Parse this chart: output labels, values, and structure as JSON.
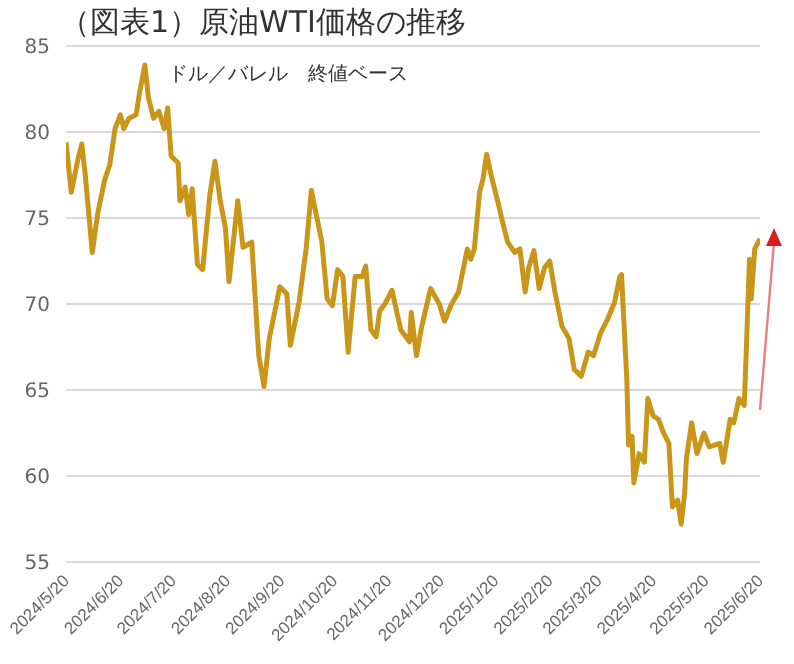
{
  "chart_data": {
    "type": "line",
    "title": "（図表1）原油WTI価格の推移",
    "subtitle": "ドル／バレル　終値ベース",
    "x": [
      "2024-05-20",
      "2024-05-23",
      "2024-05-27",
      "2024-05-29",
      "2024-05-31",
      "2024-06-04",
      "2024-06-07",
      "2024-06-11",
      "2024-06-14",
      "2024-06-17",
      "2024-06-20",
      "2024-06-22",
      "2024-06-25",
      "2024-06-29",
      "2024-07-01",
      "2024-07-04",
      "2024-07-06",
      "2024-07-09",
      "2024-07-12",
      "2024-07-15",
      "2024-07-17",
      "2024-07-19",
      "2024-07-23",
      "2024-07-24",
      "2024-07-27",
      "2024-07-29",
      "2024-07-31",
      "2024-08-03",
      "2024-08-06",
      "2024-08-10",
      "2024-08-13",
      "2024-08-16",
      "2024-08-19",
      "2024-08-21",
      "2024-08-26",
      "2024-08-29",
      "2024-09-03",
      "2024-09-06",
      "2024-09-07",
      "2024-09-10",
      "2024-09-13",
      "2024-09-19",
      "2024-09-23",
      "2024-09-25",
      "2024-09-30",
      "2024-10-04",
      "2024-10-07",
      "2024-10-10",
      "2024-10-13",
      "2024-10-16",
      "2024-10-19",
      "2024-10-22",
      "2024-10-25",
      "2024-10-28",
      "2024-11-01",
      "2024-11-05",
      "2024-11-07",
      "2024-11-10",
      "2024-11-13",
      "2024-11-15",
      "2024-11-18",
      "2024-11-22",
      "2024-11-27",
      "2024-12-02",
      "2024-12-03",
      "2024-12-06",
      "2024-12-09",
      "2024-12-14",
      "2024-12-19",
      "2024-12-22",
      "2024-12-26",
      "2024-12-30",
      "2025-01-04",
      "2025-01-06",
      "2025-01-08",
      "2025-01-11",
      "2025-01-13",
      "2025-01-15",
      "2025-01-18",
      "2025-01-22",
      "2025-01-24",
      "2025-01-27",
      "2025-01-31",
      "2025-02-03",
      "2025-02-06",
      "2025-02-08",
      "2025-02-11",
      "2025-02-14",
      "2025-02-17",
      "2025-02-20",
      "2025-02-23",
      "2025-02-27",
      "2025-03-03",
      "2025-03-06",
      "2025-03-10",
      "2025-03-14",
      "2025-03-17",
      "2025-03-21",
      "2025-03-25",
      "2025-03-29",
      "2025-04-01",
      "2025-04-02",
      "2025-04-05",
      "2025-04-06",
      "2025-04-08",
      "2025-04-09",
      "2025-04-12",
      "2025-04-15",
      "2025-04-17",
      "2025-04-20",
      "2025-04-23",
      "2025-04-26",
      "2025-04-29",
      "2025-05-01",
      "2025-05-04",
      "2025-05-06",
      "2025-05-08",
      "2025-05-09",
      "2025-05-12",
      "2025-05-15",
      "2025-05-19",
      "2025-05-22",
      "2025-05-25",
      "2025-05-28",
      "2025-05-30",
      "2025-06-03",
      "2025-06-05",
      "2025-06-08",
      "2025-06-11",
      "2025-06-12",
      "2025-06-14",
      "2025-06-15",
      "2025-06-17",
      "2025-06-20"
    ],
    "series": [
      {
        "color": "#c9961a",
        "values": [
          79.4,
          76.5,
          78.5,
          79.3,
          77.5,
          73,
          75.2,
          77.2,
          78.1,
          80.2,
          81,
          80.2,
          80.8,
          81,
          82.3,
          83.9,
          82,
          80.8,
          81.2,
          80.2,
          81.4,
          78.6,
          78.2,
          76,
          76.8,
          75.2,
          76.7,
          72.3,
          72,
          76.3,
          78.3,
          76,
          74.4,
          71.3,
          76,
          73.3,
          73.6,
          68.6,
          67,
          65.2,
          68,
          71,
          70.6,
          67.6,
          70.1,
          73.2,
          76.6,
          75.1,
          73.6,
          70.3,
          69.9,
          72,
          71.6,
          67.2,
          71.6,
          71.6,
          72.2,
          68.5,
          68.1,
          69.6,
          70,
          70.8,
          68.5,
          67.8,
          69.5,
          67,
          68.7,
          70.9,
          70,
          69,
          70,
          70.7,
          73.2,
          72.6,
          73.2,
          76.5,
          77.3,
          78.7,
          77.3,
          75.7,
          74.8,
          73.6,
          73,
          73.2,
          70.7,
          72.1,
          73.1,
          70.9,
          72.1,
          72.5,
          70.7,
          68.7,
          68,
          66.2,
          65.8,
          67.2,
          67,
          68.3,
          69.1,
          70.1,
          71.6,
          71.7,
          65.6,
          61.8,
          62.3,
          59.6,
          61.3,
          60.8,
          64.5,
          63.5,
          63.3,
          62.5,
          61.9,
          58.2,
          58.6,
          57.2,
          59,
          61,
          63.1,
          61.3,
          62.5,
          61.7,
          61.8,
          61.9,
          60.8,
          63.3,
          63.1,
          64.5,
          64.1,
          66.8,
          72.6,
          70.3,
          73.2,
          73.8
        ]
      }
    ],
    "xlim": [
      "2024-05-20",
      "2025-06-20"
    ],
    "xticks": [
      {
        "value": "2024-05-20",
        "label": "2024/5/20"
      },
      {
        "value": "2024-06-20",
        "label": "2024/6/20"
      },
      {
        "value": "2024-07-20",
        "label": "2024/7/20"
      },
      {
        "value": "2024-08-20",
        "label": "2024/8/20"
      },
      {
        "value": "2024-09-20",
        "label": "2024/9/20"
      },
      {
        "value": "2024-10-20",
        "label": "2024/10/20"
      },
      {
        "value": "2024-11-20",
        "label": "2024/11/20"
      },
      {
        "value": "2024-12-20",
        "label": "2024/12/20"
      },
      {
        "value": "2025-01-20",
        "label": "2025/1/20"
      },
      {
        "value": "2025-02-20",
        "label": "2025/2/20"
      },
      {
        "value": "2025-03-20",
        "label": "2025/3/20"
      },
      {
        "value": "2025-04-20",
        "label": "2025/4/20"
      },
      {
        "value": "2025-05-20",
        "label": "2025/5/20"
      },
      {
        "value": "2025-06-20",
        "label": "2025/6/20"
      }
    ],
    "ylim": [
      55,
      85
    ],
    "yticks": [
      55,
      60,
      65,
      70,
      75,
      80,
      85
    ],
    "grid": "y"
  }
}
